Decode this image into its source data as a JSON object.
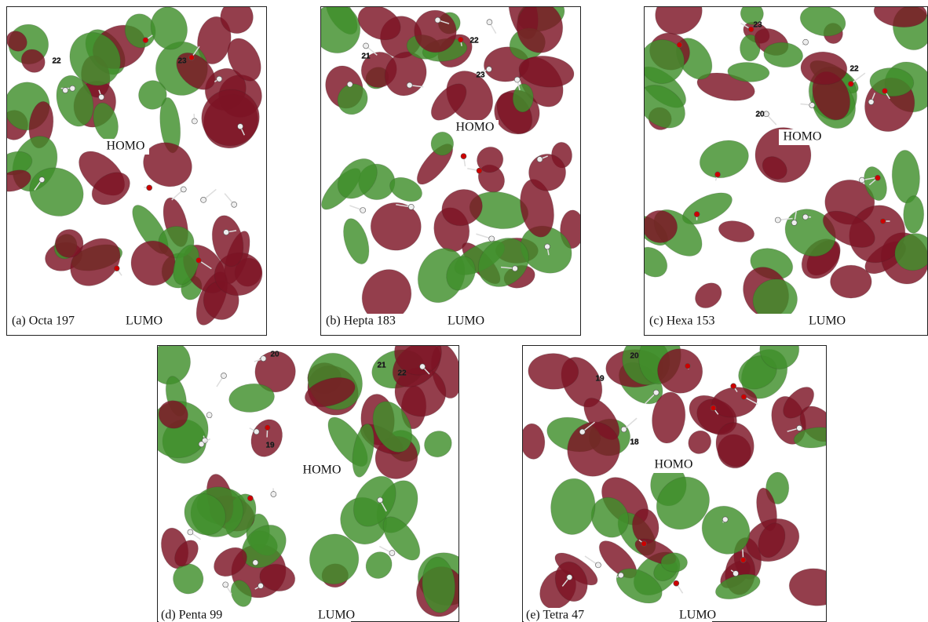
{
  "panels": [
    {
      "caption": "(a) Octa 197",
      "homo": "HOMO",
      "lumo": "LUMO",
      "atom_labels": [
        "22",
        "23"
      ]
    },
    {
      "caption": "(b) Hepta 183",
      "homo": "HOMO",
      "lumo": "LUMO",
      "atom_labels": [
        "21",
        "22",
        "23"
      ]
    },
    {
      "caption": "(c) Hexa 153",
      "homo": "HOMO",
      "lumo": "LUMO",
      "atom_labels": [
        "23",
        "20",
        "22"
      ]
    },
    {
      "caption": "(d) Penta 99",
      "homo": "HOMO",
      "lumo": "LUMO",
      "atom_labels": [
        "20",
        "21",
        "22",
        "19"
      ]
    },
    {
      "caption": "(e) Tetra 47",
      "homo": "HOMO",
      "lumo": "LUMO",
      "atom_labels": [
        "20",
        "19",
        "18"
      ]
    }
  ]
}
